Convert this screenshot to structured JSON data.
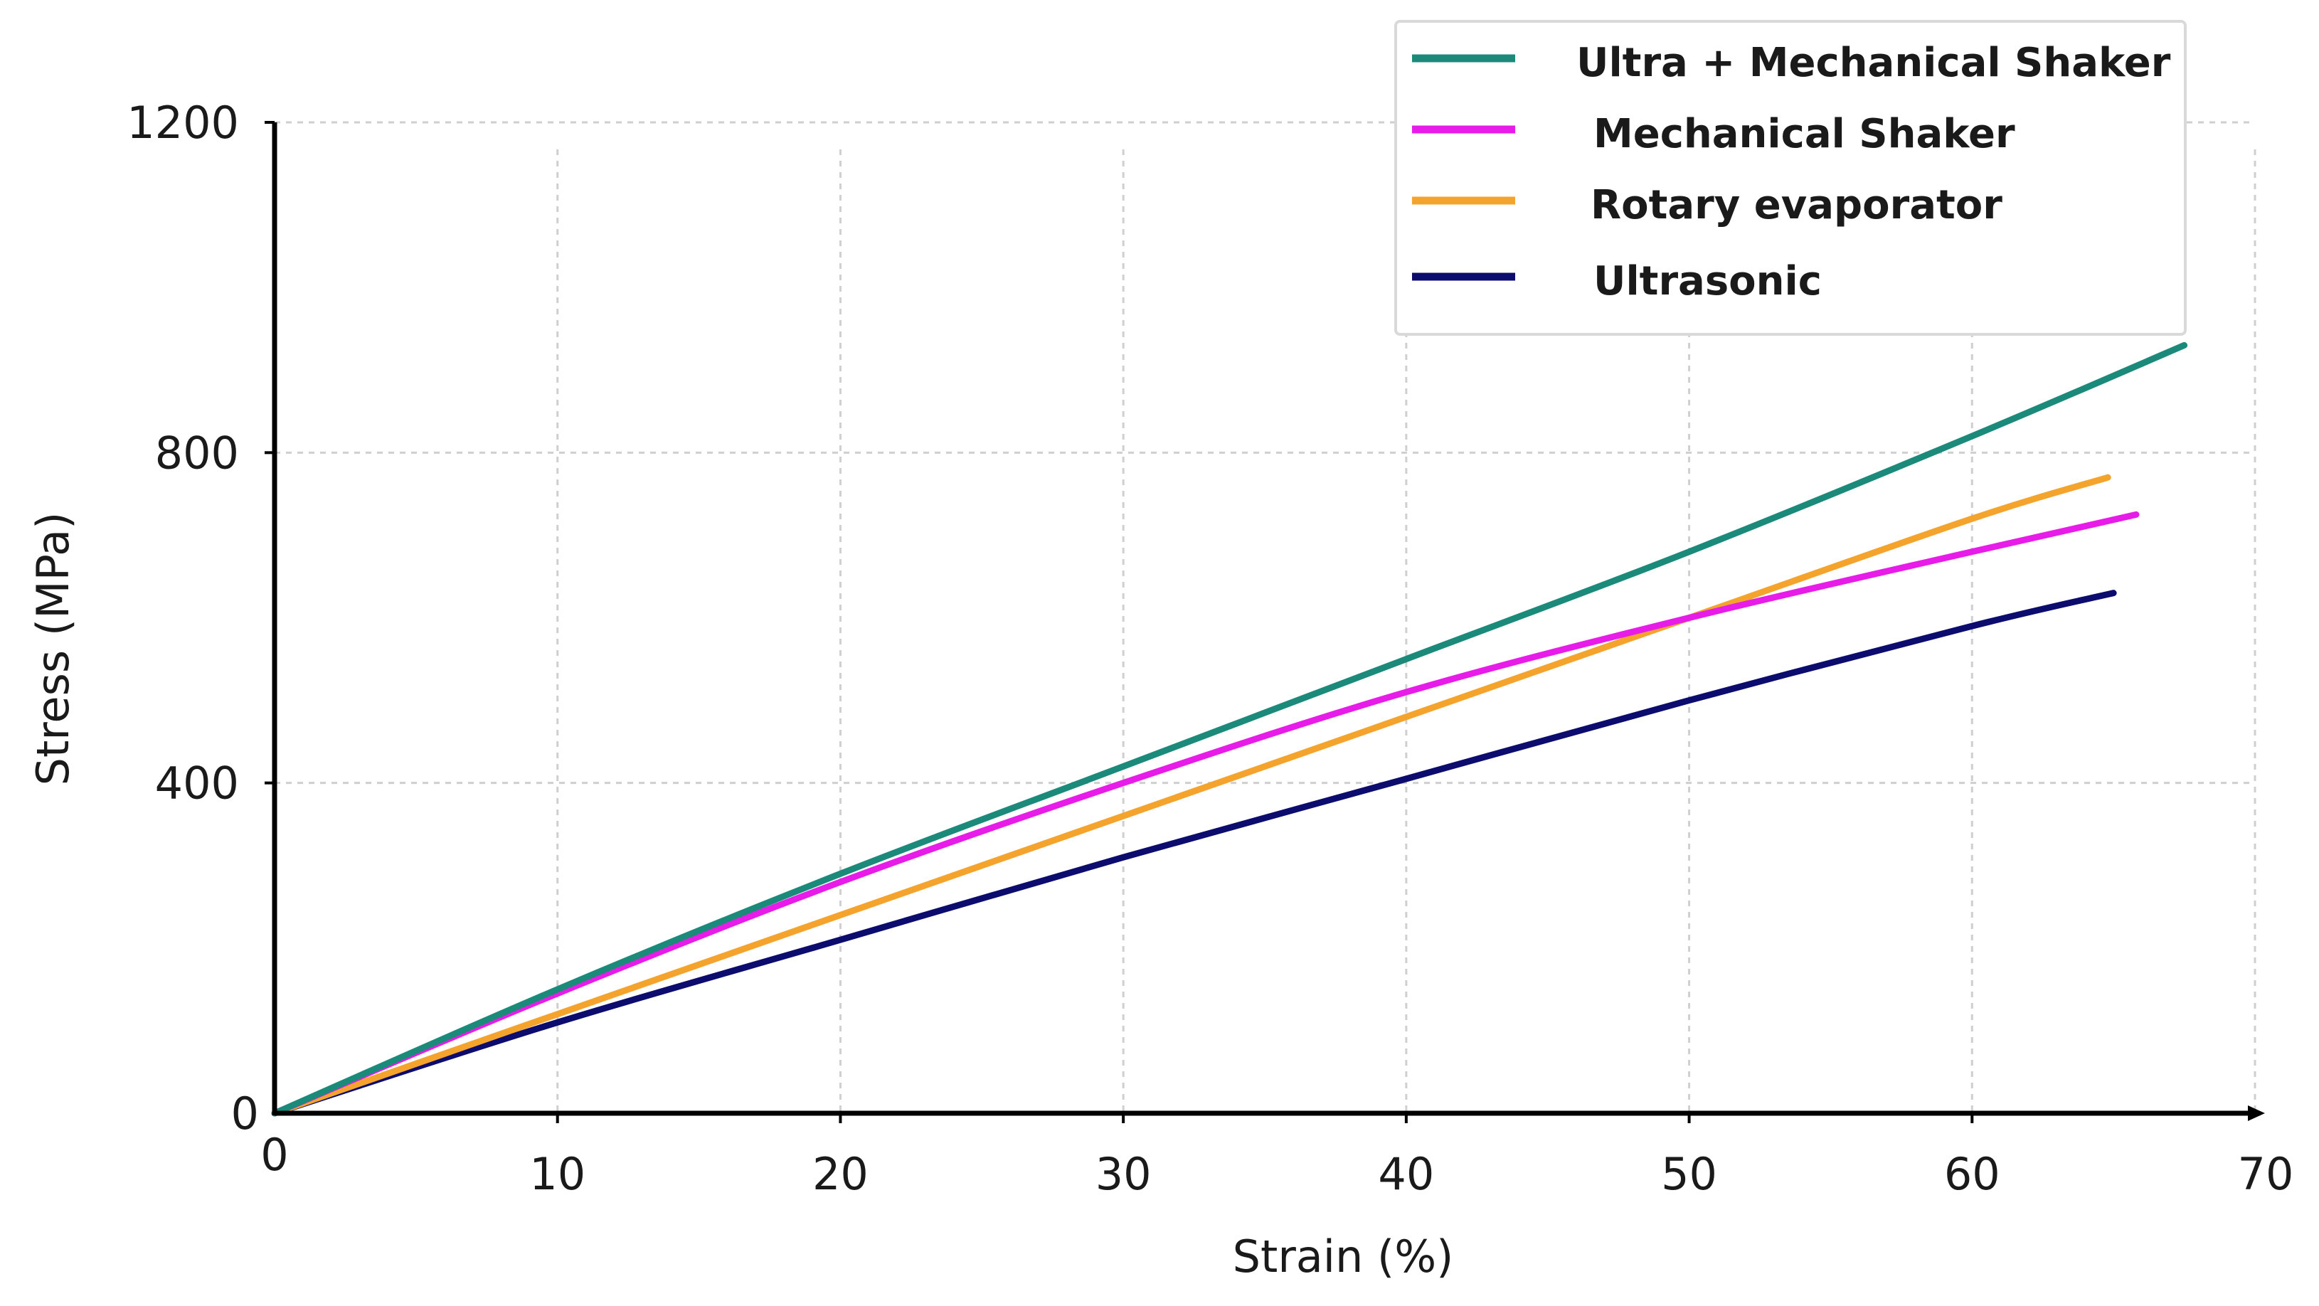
{
  "chart_data": {
    "type": "line",
    "title": "",
    "xlabel": "Strain (%)",
    "ylabel": "Stress (MPa)",
    "xlim": [
      0,
      70
    ],
    "ylim": [
      0,
      1200
    ],
    "xticks": [
      0,
      10,
      20,
      30,
      40,
      50,
      60,
      70
    ],
    "yticks": [
      0,
      400,
      800,
      1200
    ],
    "x_tick_labels": [
      "0",
      "10",
      "20",
      "30",
      "40",
      "50",
      "60",
      "70"
    ],
    "y_tick_labels": [
      "0",
      "400",
      "800",
      "1200"
    ],
    "grid": true,
    "legend_position": "top-right",
    "series": [
      {
        "name": "Ultra + Mechanical Shaker",
        "color": "#1b8a7a",
        "x": [
          0,
          10,
          20,
          30,
          40,
          50,
          60,
          67.5
        ],
        "y": [
          0,
          150,
          290,
          420,
          550,
          680,
          820,
          930
        ]
      },
      {
        "name": "Mechanical Shaker",
        "color": "#e81ce8",
        "x": [
          0,
          10,
          20,
          30,
          40,
          50,
          60,
          65.8
        ],
        "y": [
          0,
          145,
          280,
          400,
          510,
          600,
          680,
          725
        ]
      },
      {
        "name": "Rotary evaporator",
        "color": "#f4a32c",
        "x": [
          0,
          10,
          20,
          30,
          40,
          50,
          60,
          64.8
        ],
        "y": [
          0,
          120,
          240,
          360,
          480,
          600,
          720,
          770
        ]
      },
      {
        "name": "Ultrasonic",
        "color": "#0c0c6e",
        "x": [
          0,
          10,
          20,
          30,
          40,
          50,
          60,
          65
        ],
        "y": [
          0,
          110,
          210,
          310,
          405,
          500,
          590,
          630
        ]
      }
    ]
  }
}
